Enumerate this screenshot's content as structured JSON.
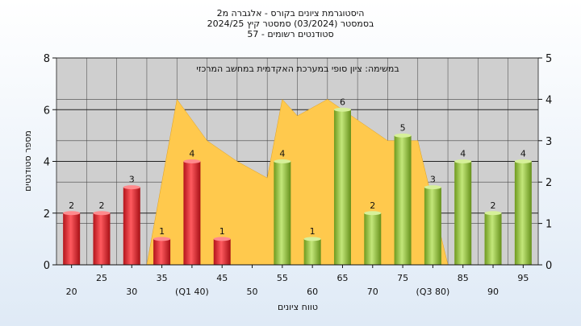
{
  "chart_data": {
    "type": "bar",
    "title_lines": [
      "היסטוגרמת ציונים בקורס - אלגברה מ2",
      "בסמסטר  (03/2024)  סמסטר קיץ  2024/25",
      "סטודנטים רשומים - 57"
    ],
    "annotation": "במשימה: ציון סופי במערכת האקדמית במחשב המרכזי",
    "xlabel": "טווח ציונים",
    "ylabel": "מספר סטודנטים",
    "ylim": [
      0,
      8
    ],
    "y2lim": [
      0,
      5
    ],
    "yticks": [
      "0",
      "2",
      "4",
      "6",
      "8"
    ],
    "y2ticks": [
      "0",
      "1",
      "2",
      "3",
      "4",
      "5"
    ],
    "categories": [
      "20",
      "25",
      "30",
      "35",
      "40",
      "45",
      "50",
      "55",
      "60",
      "65",
      "70",
      "75",
      "80",
      "85",
      "90",
      "95"
    ],
    "tick_labels": [
      "20",
      "25",
      "30",
      "35",
      "(Q1 40)",
      "45",
      "50",
      "55",
      "60",
      "65",
      "70",
      "75",
      "(Q3 80)",
      "85",
      "90",
      "95"
    ],
    "values": [
      2,
      2,
      3,
      1,
      4,
      1,
      0,
      4,
      1,
      6,
      2,
      5,
      3,
      4,
      2,
      4
    ],
    "data_labels": [
      "2",
      "2",
      "3",
      "1",
      "4",
      "1",
      "",
      "4",
      "1",
      "6",
      "2",
      "5",
      "3",
      "4",
      "2",
      "4"
    ],
    "area_series": {
      "axis": "secondary",
      "x": [
        3,
        4,
        5,
        6,
        7,
        7.5,
        8,
        9,
        10,
        11,
        12,
        13
      ],
      "y": [
        0,
        4,
        3,
        2.5,
        2.1,
        4,
        3.6,
        4,
        3.5,
        3,
        3,
        0
      ]
    },
    "grid": true,
    "colors": {
      "plot_bg": "#cfcfcf",
      "area": "#ffc94d",
      "bar_red": "#e0262b",
      "bar_green": "#9ccc3c",
      "grid": "#555555"
    }
  }
}
